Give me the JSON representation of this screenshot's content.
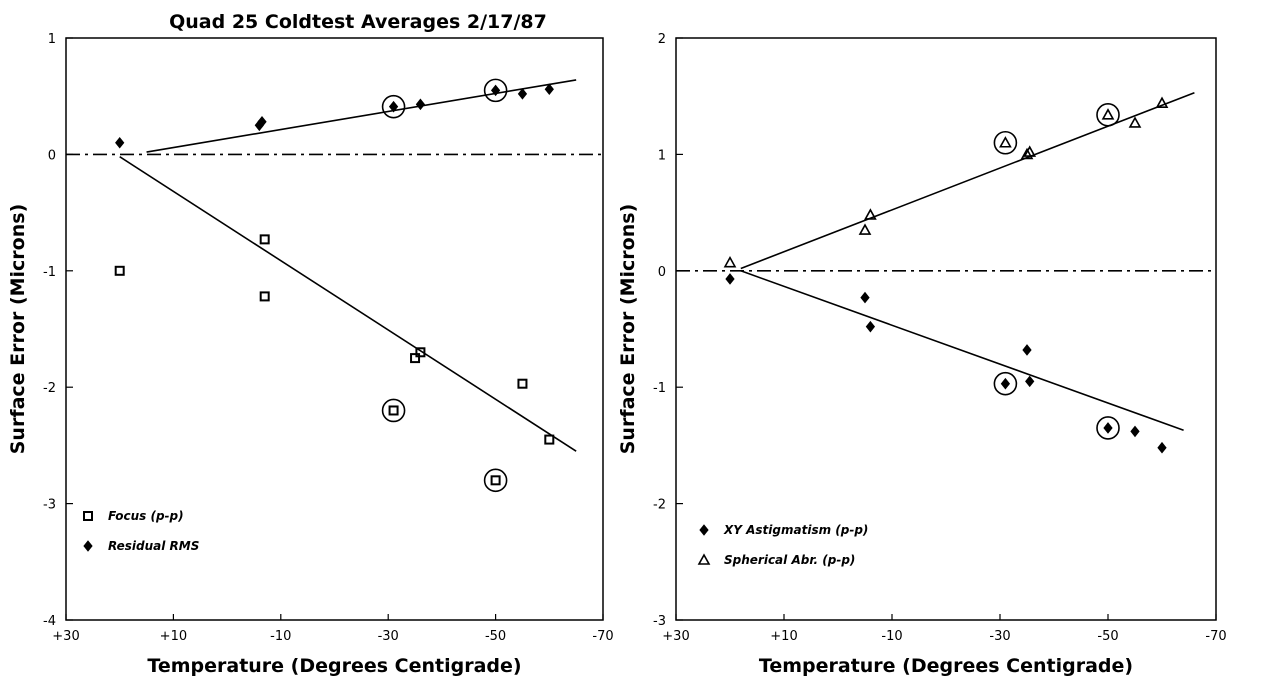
{
  "title": "Quad 25 Coldtest Averages 2/17/87",
  "chart_data": [
    {
      "type": "scatter",
      "xlabel": "Temperature (Degrees Centigrade)",
      "ylabel": "Surface Error (Microns)",
      "xlim": [
        30,
        -70
      ],
      "ylim": [
        -4,
        1
      ],
      "x_tick_labels": [
        "+30",
        "+10",
        "-10",
        "-30",
        "-50",
        "-70"
      ],
      "y_tick_labels": [
        "1",
        "0",
        "-1",
        "-2",
        "-3",
        "-4"
      ],
      "legend": {
        "position": "bottom-left",
        "entries": [
          "Focus (p-p)",
          "Residual RMS"
        ]
      },
      "series": [
        {
          "name": "Focus (p-p)",
          "marker": "square",
          "points": [
            [
              20,
              -1.0
            ],
            [
              -7,
              -0.73
            ],
            [
              -7,
              -1.22
            ],
            [
              -31,
              -2.2
            ],
            [
              -35,
              -1.75
            ],
            [
              -36,
              -1.7
            ],
            [
              -50,
              -2.8
            ],
            [
              -55,
              -1.97
            ],
            [
              -60,
              -2.45
            ]
          ],
          "circled": [
            [
              -31,
              -2.2
            ],
            [
              -50,
              -2.8
            ]
          ],
          "fit": [
            [
              20,
              -0.02
            ],
            [
              -65,
              -2.55
            ]
          ]
        },
        {
          "name": "Residual RMS",
          "marker": "diamond",
          "points": [
            [
              20,
              0.1
            ],
            [
              -6,
              0.25
            ],
            [
              -6.5,
              0.28
            ],
            [
              -31,
              0.41
            ],
            [
              -36,
              0.43
            ],
            [
              -50,
              0.55
            ],
            [
              -55,
              0.52
            ],
            [
              -60,
              0.56
            ]
          ],
          "circled": [
            [
              -31,
              0.41
            ],
            [
              -50,
              0.55
            ]
          ],
          "fit": [
            [
              15,
              0.02
            ],
            [
              -65,
              0.64
            ]
          ]
        }
      ],
      "reference_line_y": 0
    },
    {
      "type": "scatter",
      "xlabel": "Temperature (Degrees Centigrade)",
      "ylabel": "Surface Error (Microns)",
      "xlim": [
        30,
        -70
      ],
      "ylim": [
        -3,
        2
      ],
      "x_tick_labels": [
        "+30",
        "+10",
        "-10",
        "-30",
        "-50",
        "-70"
      ],
      "y_tick_labels": [
        "2",
        "1",
        "0",
        "-1",
        "-2",
        "-3"
      ],
      "legend": {
        "position": "bottom-left",
        "entries": [
          "XY Astigmatism (p-p)",
          "Spherical Abr. (p-p)"
        ]
      },
      "series": [
        {
          "name": "XY Astigmatism (p-p)",
          "marker": "diamond",
          "points": [
            [
              20,
              -0.07
            ],
            [
              -5,
              -0.23
            ],
            [
              -6,
              -0.48
            ],
            [
              -31,
              -0.97
            ],
            [
              -35,
              -0.68
            ],
            [
              -35.5,
              -0.95
            ],
            [
              -50,
              -1.35
            ],
            [
              -55,
              -1.38
            ],
            [
              -60,
              -1.52
            ]
          ],
          "circled": [
            [
              -31,
              -0.97
            ],
            [
              -50,
              -1.35
            ]
          ],
          "fit": [
            [
              18,
              0.0
            ],
            [
              -64,
              -1.37
            ]
          ]
        },
        {
          "name": "Spherical Abr. (p-p)",
          "marker": "triangle",
          "points": [
            [
              20,
              0.07
            ],
            [
              -5,
              0.35
            ],
            [
              -6,
              0.48
            ],
            [
              -31,
              1.1
            ],
            [
              -35,
              1.0
            ],
            [
              -35.5,
              1.02
            ],
            [
              -50,
              1.34
            ],
            [
              -55,
              1.27
            ],
            [
              -60,
              1.44
            ]
          ],
          "circled": [
            [
              -31,
              1.1
            ],
            [
              -50,
              1.34
            ]
          ],
          "fit": [
            [
              18,
              0.02
            ],
            [
              -66,
              1.53
            ]
          ]
        }
      ],
      "reference_line_y": 0
    }
  ]
}
